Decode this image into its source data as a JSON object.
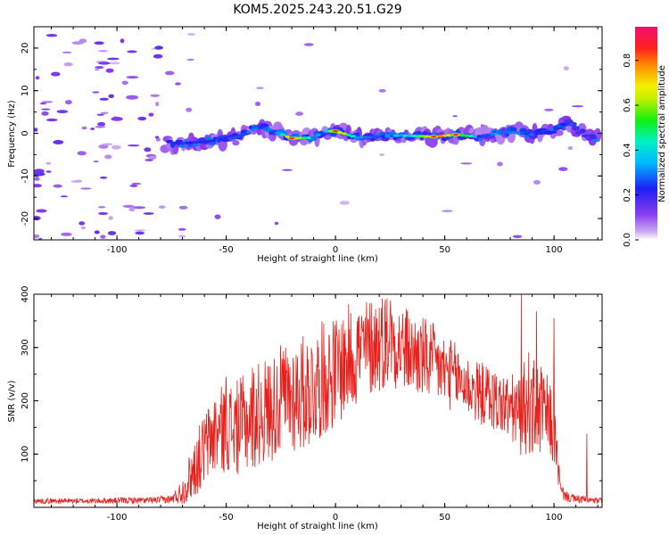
{
  "title": "KOM5.2025.243.20.51.G29",
  "colors": {
    "signal": "#e8201c",
    "axis": "#000000"
  },
  "chart_data": [
    {
      "type": "heatmap",
      "title": "KOM5.2025.243.20.51.G29",
      "xlabel": "Height of straight line (km)",
      "ylabel": "Frequency (Hz)",
      "xlim": [
        -138,
        122
      ],
      "ylim": [
        -25,
        25
      ],
      "x_ticks": [
        -100,
        -50,
        0,
        50,
        100
      ],
      "y_ticks": [
        -20,
        -10,
        0,
        10,
        20
      ],
      "colorbar": {
        "label": "Normalized spectral amplitude",
        "range": [
          0,
          0.95
        ],
        "ticks": [
          "0.0",
          "0.2",
          "0.4",
          "0.6",
          "0.8"
        ],
        "tick_values": [
          0,
          0.2,
          0.4,
          0.6,
          0.8
        ],
        "colormap": "rainbow (purple-blue-cyan-green-yellow-red-magenta)"
      },
      "signal_track": [
        {
          "x": -75,
          "y": -2.5,
          "amp": 0.25
        },
        {
          "x": -60,
          "y": -2.0,
          "amp": 0.3
        },
        {
          "x": -45,
          "y": -1.0,
          "amp": 0.3
        },
        {
          "x": -35,
          "y": 1.5,
          "amp": 0.35
        },
        {
          "x": -28,
          "y": 0.5,
          "amp": 0.3
        },
        {
          "x": -20,
          "y": -1.2,
          "amp": 0.85
        },
        {
          "x": -10,
          "y": -1.0,
          "amp": 0.35
        },
        {
          "x": -5,
          "y": 0.5,
          "amp": 0.3
        },
        {
          "x": 0,
          "y": 0.5,
          "amp": 0.85
        },
        {
          "x": 10,
          "y": -1.0,
          "amp": 0.35
        },
        {
          "x": 20,
          "y": -0.8,
          "amp": 0.3
        },
        {
          "x": 30,
          "y": -0.5,
          "amp": 0.4
        },
        {
          "x": 45,
          "y": -0.8,
          "amp": 0.85
        },
        {
          "x": 55,
          "y": -0.3,
          "amp": 0.85
        },
        {
          "x": 65,
          "y": -0.8,
          "amp": 0.3
        },
        {
          "x": 78,
          "y": 0.3,
          "amp": 0.35
        },
        {
          "x": 90,
          "y": -0.2,
          "amp": 0.3
        },
        {
          "x": 100,
          "y": 0.3,
          "amp": 0.3
        },
        {
          "x": 106,
          "y": 3.0,
          "amp": 0.2
        },
        {
          "x": 115,
          "y": -1.0,
          "amp": 0.2
        }
      ]
    },
    {
      "type": "line",
      "xlabel": "Height of straight line (km)",
      "ylabel": "SNR (v/v)",
      "xlim": [
        -138,
        122
      ],
      "ylim": [
        0,
        400
      ],
      "x_ticks": [
        -100,
        -50,
        0,
        50,
        100
      ],
      "y_ticks": [
        100,
        200,
        300,
        400
      ],
      "series": [
        {
          "name": "SNR",
          "color": "#e8201c",
          "x": [
            -138,
            -125,
            -110,
            -95,
            -85,
            -75,
            -70,
            -65,
            -60,
            -55,
            -50,
            -45,
            -40,
            -35,
            -30,
            -25,
            -20,
            -15,
            -10,
            -5,
            0,
            5,
            10,
            15,
            20,
            25,
            30,
            35,
            40,
            45,
            50,
            55,
            60,
            65,
            70,
            75,
            80,
            85,
            88,
            90,
            95,
            100,
            103,
            106,
            110,
            115,
            118,
            122
          ],
          "envelope": [
            12,
            12,
            12,
            13,
            13,
            15,
            30,
            70,
            110,
            140,
            150,
            150,
            160,
            175,
            185,
            200,
            210,
            215,
            225,
            245,
            255,
            275,
            290,
            300,
            310,
            320,
            300,
            290,
            280,
            270,
            255,
            245,
            230,
            215,
            210,
            195,
            185,
            175,
            200,
            185,
            180,
            150,
            30,
            20,
            15,
            15,
            12,
            12
          ],
          "spread": [
            5,
            5,
            5,
            6,
            6,
            8,
            25,
            55,
            70,
            80,
            85,
            90,
            95,
            100,
            100,
            105,
            110,
            110,
            110,
            110,
            105,
            105,
            100,
            95,
            95,
            90,
            85,
            80,
            80,
            75,
            70,
            65,
            60,
            60,
            60,
            60,
            65,
            80,
            100,
            95,
            85,
            70,
            15,
            10,
            8,
            8,
            6,
            6
          ],
          "peaks": [
            {
              "x": -55,
              "y": 165
            },
            {
              "x": -50,
              "y": 245
            },
            {
              "x": -38,
              "y": 262
            },
            {
              "x": -25,
              "y": 270
            },
            {
              "x": 10,
              "y": 350
            },
            {
              "x": 25,
              "y": 368
            },
            {
              "x": 35,
              "y": 345
            },
            {
              "x": 85,
              "y": 400
            },
            {
              "x": 92,
              "y": 368
            },
            {
              "x": 100,
              "y": 355
            },
            {
              "x": 115,
              "y": 138
            }
          ]
        }
      ]
    }
  ]
}
